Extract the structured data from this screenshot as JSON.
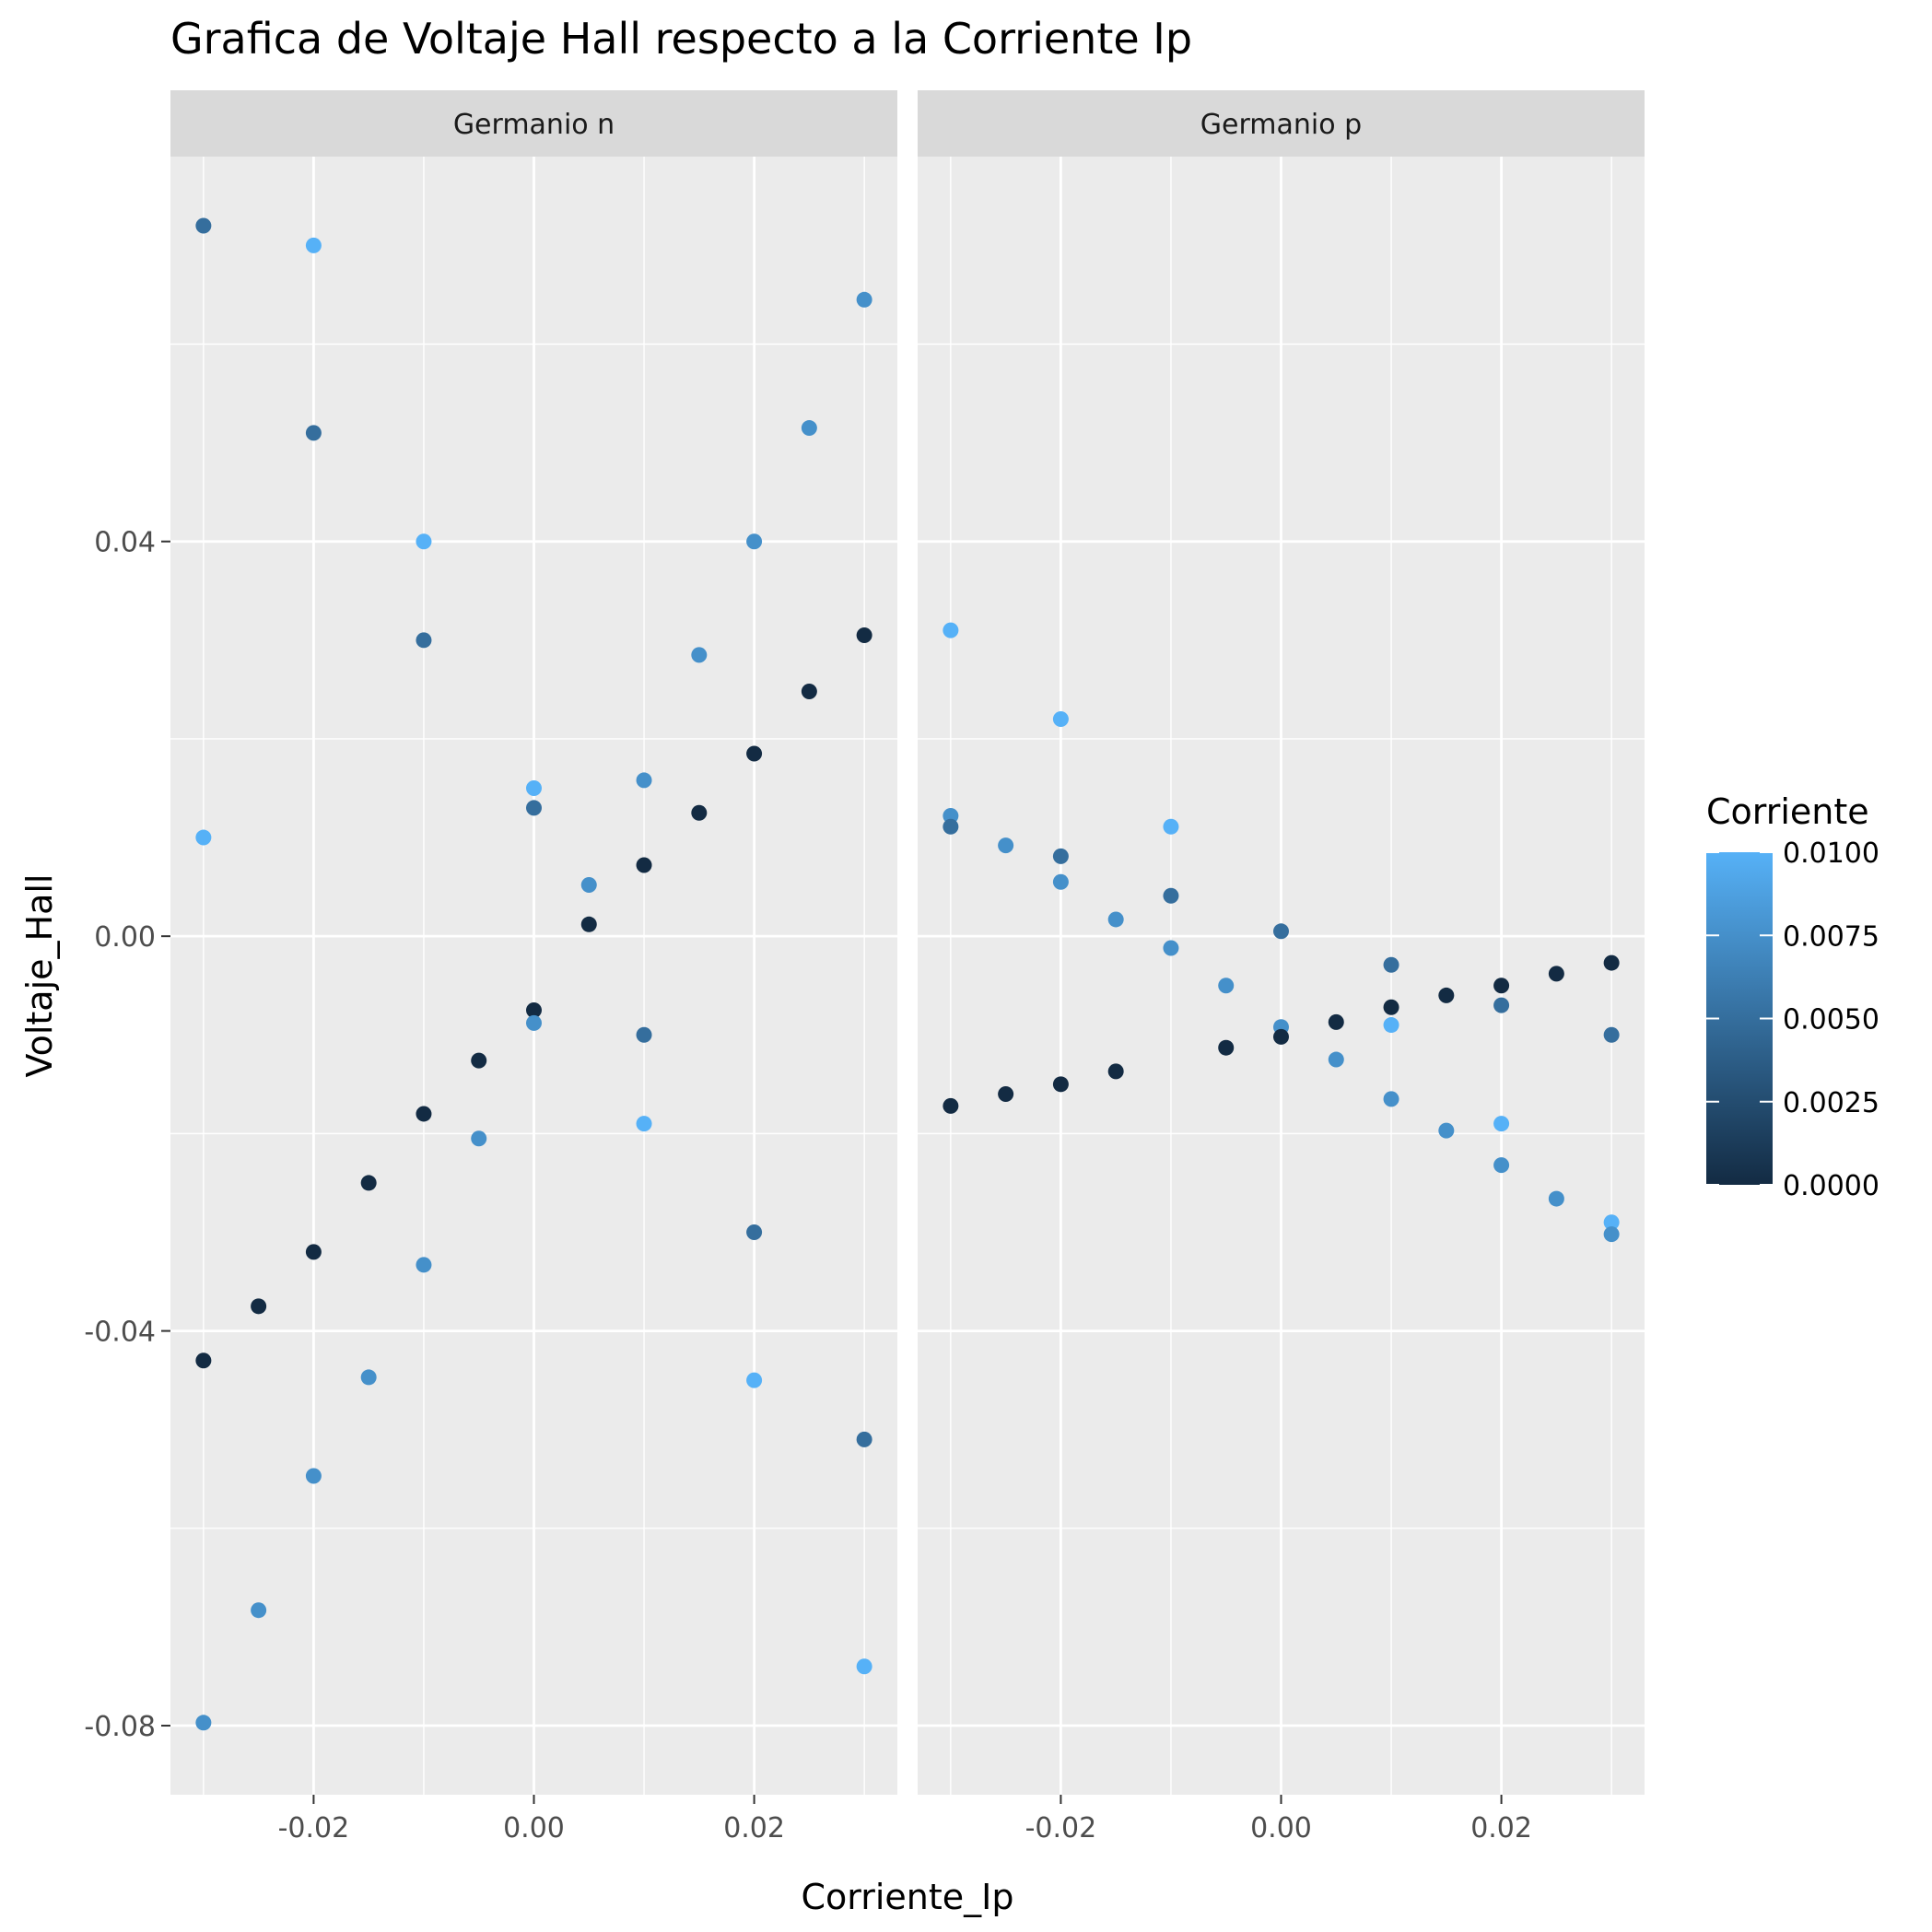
{
  "chart_data": {
    "type": "scatter",
    "title": "Grafica de Voltaje Hall respecto a la Corriente Ip",
    "xlabel": "Corriente_Ip",
    "ylabel": "Voltaje_Hall",
    "xlim": [
      -0.033,
      0.033
    ],
    "ylim": [
      -0.087,
      0.079
    ],
    "x_ticks": [
      -0.02,
      0.0,
      0.02
    ],
    "x_tick_labels": [
      "-0.02",
      "0.00",
      "0.02"
    ],
    "y_ticks": [
      -0.08,
      -0.04,
      0.0,
      0.04
    ],
    "y_tick_labels": [
      "-0.08",
      "-0.04",
      "0.00",
      "0.04"
    ],
    "grid": true,
    "legend": {
      "title": "Corriente",
      "position": "right",
      "breaks": [
        0.0,
        0.0025,
        0.005,
        0.0075,
        0.01
      ],
      "labels": [
        "0.0000",
        "0.0025",
        "0.0050",
        "0.0075",
        "0.0100"
      ],
      "color_low": "#132b43",
      "color_high": "#56b1f7"
    },
    "panels": [
      {
        "label": "Germanio n",
        "points": [
          {
            "x": -0.03,
            "y": 0.072,
            "c": 0.005
          },
          {
            "x": -0.02,
            "y": 0.07,
            "c": 0.01
          },
          {
            "x": 0.03,
            "y": 0.0645,
            "c": 0.0075
          },
          {
            "x": -0.02,
            "y": 0.051,
            "c": 0.005
          },
          {
            "x": 0.025,
            "y": 0.0515,
            "c": 0.0075
          },
          {
            "x": -0.01,
            "y": 0.04,
            "c": 0.01
          },
          {
            "x": 0.02,
            "y": 0.04,
            "c": 0.0075
          },
          {
            "x": -0.01,
            "y": 0.03,
            "c": 0.005
          },
          {
            "x": 0.03,
            "y": 0.0305,
            "c": 0.0
          },
          {
            "x": 0.015,
            "y": 0.0285,
            "c": 0.0075
          },
          {
            "x": 0.025,
            "y": 0.0248,
            "c": 0.0
          },
          {
            "x": 0.02,
            "y": 0.0185,
            "c": 0.0
          },
          {
            "x": 0.0,
            "y": 0.015,
            "c": 0.01
          },
          {
            "x": 0.01,
            "y": 0.0158,
            "c": 0.0075
          },
          {
            "x": 0.0,
            "y": 0.013,
            "c": 0.005
          },
          {
            "x": 0.015,
            "y": 0.0125,
            "c": 0.0
          },
          {
            "x": -0.03,
            "y": 0.01,
            "c": 0.01
          },
          {
            "x": 0.01,
            "y": 0.0072,
            "c": 0.0
          },
          {
            "x": 0.005,
            "y": 0.0052,
            "c": 0.0075
          },
          {
            "x": 0.005,
            "y": 0.0012,
            "c": 0.0
          },
          {
            "x": 0.0,
            "y": -0.0075,
            "c": 0.0
          },
          {
            "x": 0.0,
            "y": -0.0088,
            "c": 0.0075
          },
          {
            "x": 0.01,
            "y": -0.01,
            "c": 0.005
          },
          {
            "x": -0.005,
            "y": -0.0126,
            "c": 0.0
          },
          {
            "x": -0.01,
            "y": -0.018,
            "c": 0.0
          },
          {
            "x": 0.01,
            "y": -0.019,
            "c": 0.01
          },
          {
            "x": -0.005,
            "y": -0.0205,
            "c": 0.0075
          },
          {
            "x": -0.015,
            "y": -0.025,
            "c": 0.0
          },
          {
            "x": 0.02,
            "y": -0.03,
            "c": 0.005
          },
          {
            "x": -0.02,
            "y": -0.032,
            "c": 0.0
          },
          {
            "x": -0.01,
            "y": -0.0333,
            "c": 0.0075
          },
          {
            "x": -0.025,
            "y": -0.0375,
            "c": 0.0
          },
          {
            "x": -0.03,
            "y": -0.043,
            "c": 0.0
          },
          {
            "x": -0.015,
            "y": -0.0447,
            "c": 0.0075
          },
          {
            "x": 0.02,
            "y": -0.045,
            "c": 0.01
          },
          {
            "x": 0.03,
            "y": -0.051,
            "c": 0.005
          },
          {
            "x": -0.02,
            "y": -0.0547,
            "c": 0.0075
          },
          {
            "x": -0.025,
            "y": -0.0683,
            "c": 0.0075
          },
          {
            "x": 0.03,
            "y": -0.074,
            "c": 0.01
          },
          {
            "x": -0.03,
            "y": -0.0797,
            "c": 0.0075
          }
        ]
      },
      {
        "label": "Germanio p",
        "points": [
          {
            "x": -0.03,
            "y": 0.031,
            "c": 0.01
          },
          {
            "x": -0.02,
            "y": 0.022,
            "c": 0.01
          },
          {
            "x": -0.03,
            "y": 0.0122,
            "c": 0.0075
          },
          {
            "x": -0.03,
            "y": 0.0111,
            "c": 0.005
          },
          {
            "x": -0.01,
            "y": 0.0111,
            "c": 0.01
          },
          {
            "x": -0.025,
            "y": 0.0092,
            "c": 0.0075
          },
          {
            "x": -0.02,
            "y": 0.0081,
            "c": 0.005
          },
          {
            "x": -0.02,
            "y": 0.0055,
            "c": 0.0075
          },
          {
            "x": -0.01,
            "y": 0.0041,
            "c": 0.005
          },
          {
            "x": -0.015,
            "y": 0.0017,
            "c": 0.0075
          },
          {
            "x": 0.0,
            "y": 0.0005,
            "c": 0.005
          },
          {
            "x": -0.01,
            "y": -0.0012,
            "c": 0.0075
          },
          {
            "x": 0.01,
            "y": -0.0029,
            "c": 0.005
          },
          {
            "x": 0.03,
            "y": -0.0027,
            "c": 0.0
          },
          {
            "x": 0.025,
            "y": -0.0038,
            "c": 0.0
          },
          {
            "x": 0.02,
            "y": -0.005,
            "c": 0.0
          },
          {
            "x": -0.005,
            "y": -0.005,
            "c": 0.0075
          },
          {
            "x": 0.015,
            "y": -0.006,
            "c": 0.0
          },
          {
            "x": 0.02,
            "y": -0.007,
            "c": 0.005
          },
          {
            "x": 0.01,
            "y": -0.0072,
            "c": 0.0
          },
          {
            "x": 0.005,
            "y": -0.0087,
            "c": 0.0
          },
          {
            "x": 0.01,
            "y": -0.009,
            "c": 0.01
          },
          {
            "x": 0.0,
            "y": -0.0092,
            "c": 0.0075
          },
          {
            "x": 0.03,
            "y": -0.01,
            "c": 0.005
          },
          {
            "x": 0.0,
            "y": -0.0102,
            "c": 0.0
          },
          {
            "x": -0.005,
            "y": -0.0113,
            "c": 0.0
          },
          {
            "x": 0.005,
            "y": -0.0125,
            "c": 0.0075
          },
          {
            "x": -0.015,
            "y": -0.0137,
            "c": 0.0
          },
          {
            "x": -0.02,
            "y": -0.015,
            "c": 0.0
          },
          {
            "x": -0.025,
            "y": -0.016,
            "c": 0.0
          },
          {
            "x": 0.01,
            "y": -0.0165,
            "c": 0.0075
          },
          {
            "x": -0.03,
            "y": -0.0172,
            "c": 0.0
          },
          {
            "x": 0.02,
            "y": -0.019,
            "c": 0.01
          },
          {
            "x": 0.015,
            "y": -0.0197,
            "c": 0.0075
          },
          {
            "x": 0.02,
            "y": -0.0232,
            "c": 0.0075
          },
          {
            "x": 0.025,
            "y": -0.0266,
            "c": 0.0075
          },
          {
            "x": 0.03,
            "y": -0.029,
            "c": 0.01
          },
          {
            "x": 0.03,
            "y": -0.0302,
            "c": 0.0075
          }
        ]
      }
    ]
  }
}
